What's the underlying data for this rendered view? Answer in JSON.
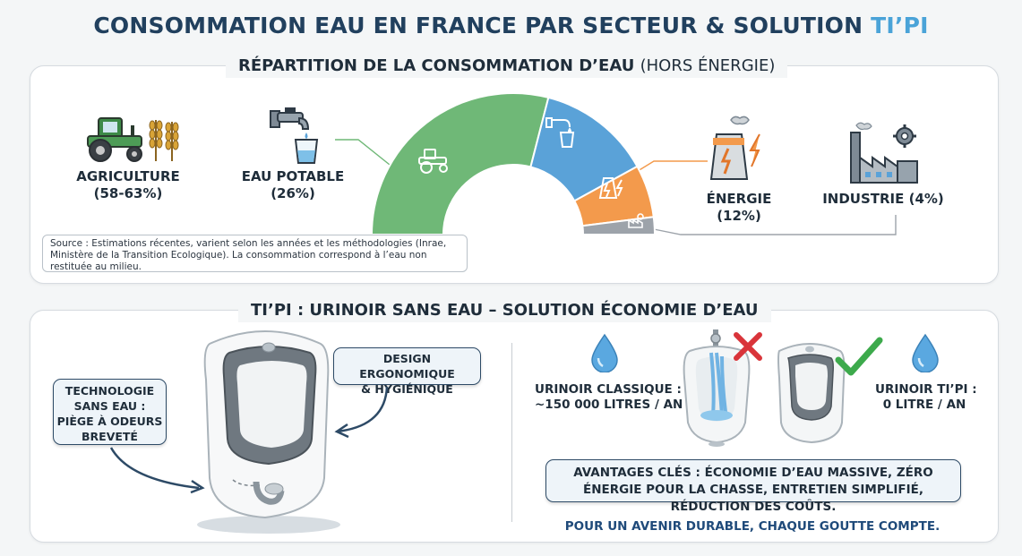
{
  "title": {
    "main": "CONSOMMATION EAU EN FRANCE PAR SECTEUR & SOLUTION",
    "accent": "TI’PI"
  },
  "repartition": {
    "heading_bold": "RÉPARTITION DE LA CONSOMMATION D’EAU",
    "heading_light": "(HORS ÉNERGIE)",
    "sectors": [
      {
        "name": "AGRICULTURE",
        "share": "(58-63%)",
        "icon": "tractor-icon"
      },
      {
        "name": "EAU POTABLE",
        "share": "(26%)",
        "icon": "faucet-icon"
      },
      {
        "name": "ÉNERGIE",
        "share": "(12%)",
        "icon": "power-plant-icon"
      },
      {
        "name": "INDUSTRIE (4%)",
        "share": "",
        "icon": "factory-icon"
      }
    ],
    "source": "Source : Estimations récentes, varient selon les années et les méthodologies (Inrae, Ministère de la Transition Ecologique). La consommation correspond à l’eau non restituée au milieu."
  },
  "chart_data": {
    "type": "pie",
    "style": "half-donut",
    "categories": [
      "Agriculture",
      "Eau potable",
      "Énergie",
      "Industrie"
    ],
    "values": [
      58,
      26,
      12,
      4
    ],
    "colors": [
      "#6fb877",
      "#5aa2d8",
      "#f39a4c",
      "#9da3aa"
    ]
  },
  "tipi": {
    "heading": "TI’PI : URINOIR SANS EAU – SOLUTION ÉCONOMIE D’EAU",
    "callout_tech": [
      "TECHNOLOGIE",
      "SANS EAU :",
      "PIÈGE À ODEURS",
      "BREVETÉ"
    ],
    "callout_design": [
      "DESIGN ERGONOMIQUE",
      "& HYGIÉNIQUE"
    ],
    "classic": {
      "line1": "URINOIR CLASSIQUE :",
      "line2": "~150 000 LITRES / AN"
    },
    "tipi_urinal": {
      "line1": "URINOIR TI’PI :",
      "line2": "0 LITRE / AN"
    },
    "advantages": "AVANTAGES CLÉS : ÉCONOMIE D’EAU MASSIVE, ZÉRO ÉNERGIE POUR LA CHASSE, ENTRETIEN SIMPLIFIÉ, RÉDUCTION DES COÛTS.",
    "footer": "POUR UN AVENIR DURABLE, CHAQUE GOUTTE COMPTE."
  },
  "colors": {
    "title": "#21405e",
    "accent": "#4aa3d8",
    "agriculture": "#6fb877",
    "drinking_water": "#5aa2d8",
    "energy": "#f39a4c",
    "industry": "#9da3aa",
    "cross": "#d9343a",
    "check": "#3daa4c",
    "footer": "#1f4a7a"
  }
}
